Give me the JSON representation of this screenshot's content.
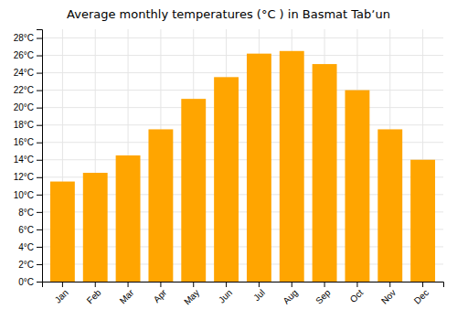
{
  "chart_data": {
    "type": "bar",
    "title": "Average monthly temperatures (°C ) in Basmat Tabʼun",
    "categories": [
      "Jan",
      "Feb",
      "Mar",
      "Apr",
      "May",
      "Jun",
      "Jul",
      "Aug",
      "Sep",
      "Oct",
      "Nov",
      "Dec"
    ],
    "values": [
      11.5,
      12.5,
      14.5,
      17.5,
      21.0,
      23.5,
      26.2,
      26.5,
      25.0,
      22.0,
      17.5,
      14.0
    ],
    "color": "#FFA500",
    "ylim": [
      0,
      29
    ],
    "yticks": [
      {
        "value": 0,
        "label": "0°C"
      },
      {
        "value": 2,
        "label": "2°C"
      },
      {
        "value": 4,
        "label": "4°C"
      },
      {
        "value": 6,
        "label": "6°C"
      },
      {
        "value": 8,
        "label": "8°C"
      },
      {
        "value": 10,
        "label": "10°C"
      },
      {
        "value": 12,
        "label": "12°C"
      },
      {
        "value": 14,
        "label": "14°C"
      },
      {
        "value": 16,
        "label": "16°C"
      },
      {
        "value": 18,
        "label": "18°C"
      },
      {
        "value": 20,
        "label": "20°C"
      },
      {
        "value": 22,
        "label": "22°C"
      },
      {
        "value": 24,
        "label": "24°C"
      },
      {
        "value": 26,
        "label": "26°C"
      },
      {
        "value": 28,
        "label": "28°C"
      }
    ],
    "grid": true
  }
}
